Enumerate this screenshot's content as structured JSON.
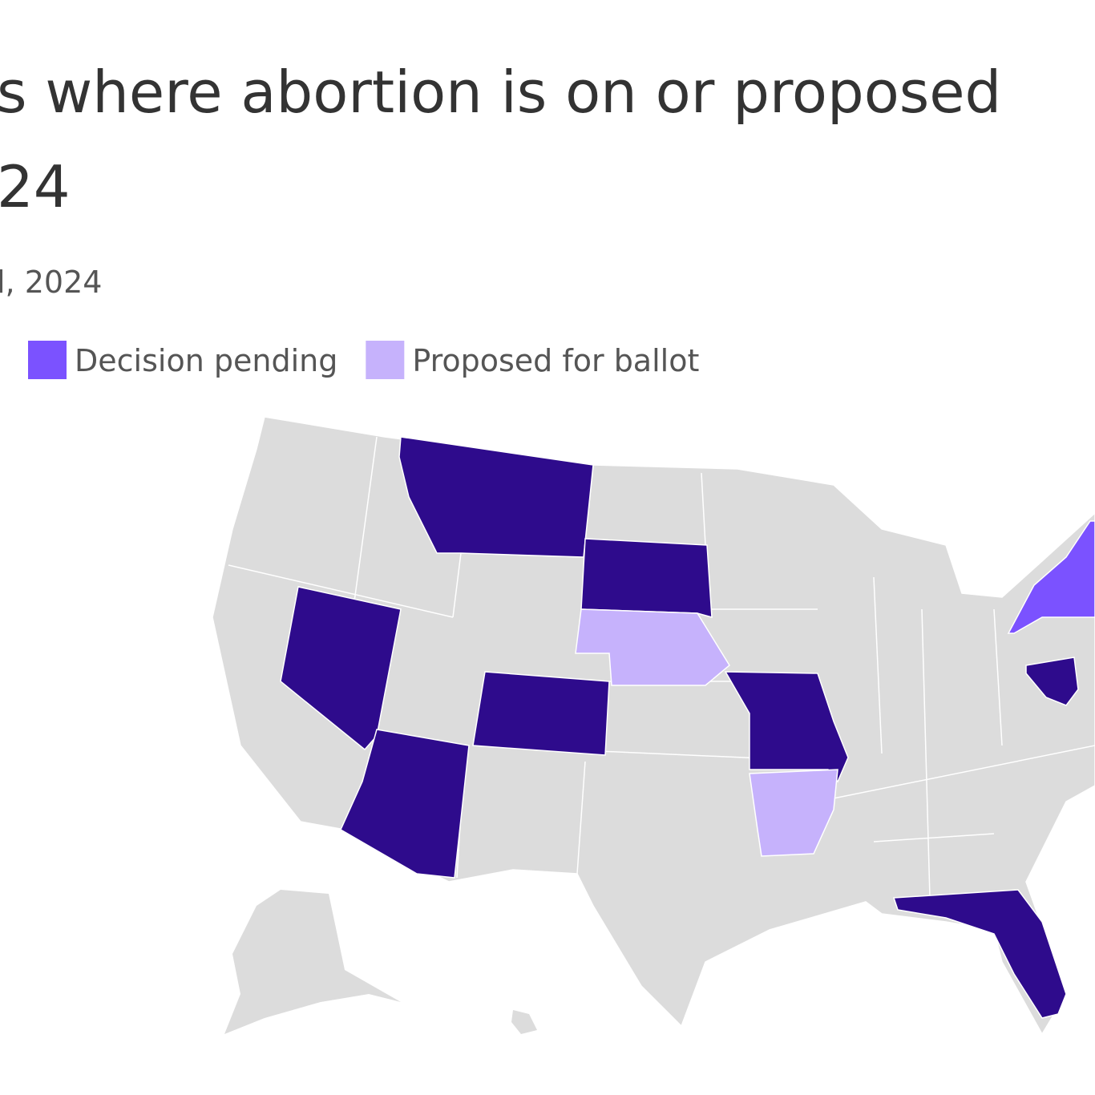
{
  "header": {
    "title_lines": [
      "s where abortion is on or proposed",
      "24"
    ],
    "subtitle": "l, 2024"
  },
  "legend": {
    "items": [
      {
        "label": "Decision pending",
        "color": "#7b52ff"
      },
      {
        "label": "Proposed for ballot",
        "color": "#c6b2fc"
      }
    ]
  }
}
